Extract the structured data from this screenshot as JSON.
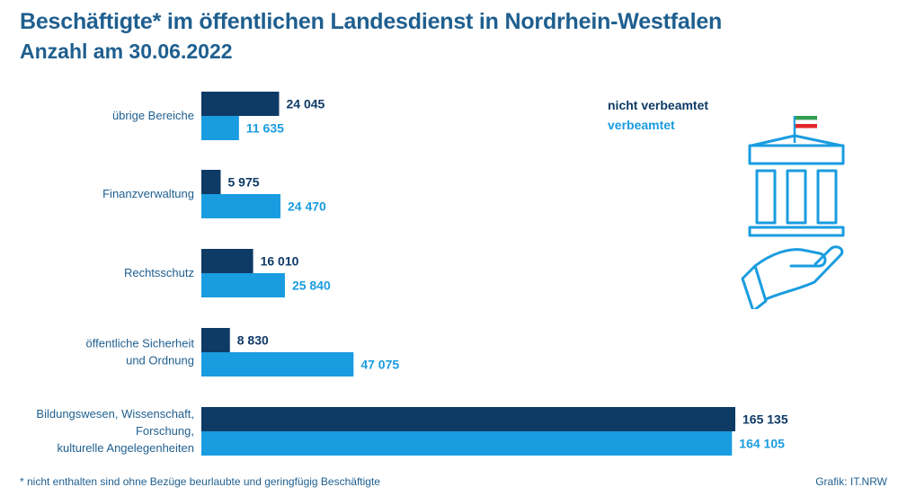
{
  "header": {
    "title": "Beschäftigte* im öffentlichen Landesdienst in Nordrhein-Westfalen",
    "subtitle": "Anzahl am 30.06.2022"
  },
  "legend": {
    "dark_label": "nicht verbeamtet",
    "light_label": "verbeamtet"
  },
  "footer": {
    "footnote": "*  nicht enthalten sind ohne Bezüge beurlaubte und geringfügig Beschäftigte",
    "source": "Grafik: IT.NRW"
  },
  "icons": [
    "government-building-icon",
    "flag-icon",
    "open-hand-icon"
  ],
  "colors": {
    "dark": "#0e3a66",
    "light": "#1a9ce0",
    "text": "#1f5f8f",
    "icon_stroke": "#1a9ce0",
    "flag_green": "#2e9e4f",
    "flag_red": "#e2262b"
  },
  "chart_data": {
    "type": "bar",
    "orientation": "horizontal",
    "categories": [
      "übrige Bereiche",
      "Finanzverwaltung",
      "Rechtsschutz",
      "öffentliche Sicherheit und Ordnung",
      "Bildungswesen, Wissenschaft, Forschung, kulturelle Angelegenheiten"
    ],
    "category_lines": [
      [
        "übrige Bereiche"
      ],
      [
        "Finanzverwaltung"
      ],
      [
        "Rechtsschutz"
      ],
      [
        "öffentliche Sicherheit",
        "und Ordnung"
      ],
      [
        "Bildungswesen, Wissenschaft,",
        "Forschung,",
        "kulturelle Angelegenheiten"
      ]
    ],
    "series": [
      {
        "name": "nicht verbeamtet",
        "values": [
          24045,
          5975,
          16010,
          8830,
          165135
        ],
        "labels": [
          "24 045",
          "5 975",
          "16 010",
          "8 830",
          "165 135"
        ]
      },
      {
        "name": "verbeamtet",
        "values": [
          11635,
          24470,
          25840,
          47075,
          164105
        ],
        "labels": [
          "11 635",
          "24 470",
          "25 840",
          "47 075",
          "164 105"
        ]
      }
    ],
    "xlim": [
      0,
      165135
    ],
    "grid": false,
    "legend": "top-right"
  }
}
